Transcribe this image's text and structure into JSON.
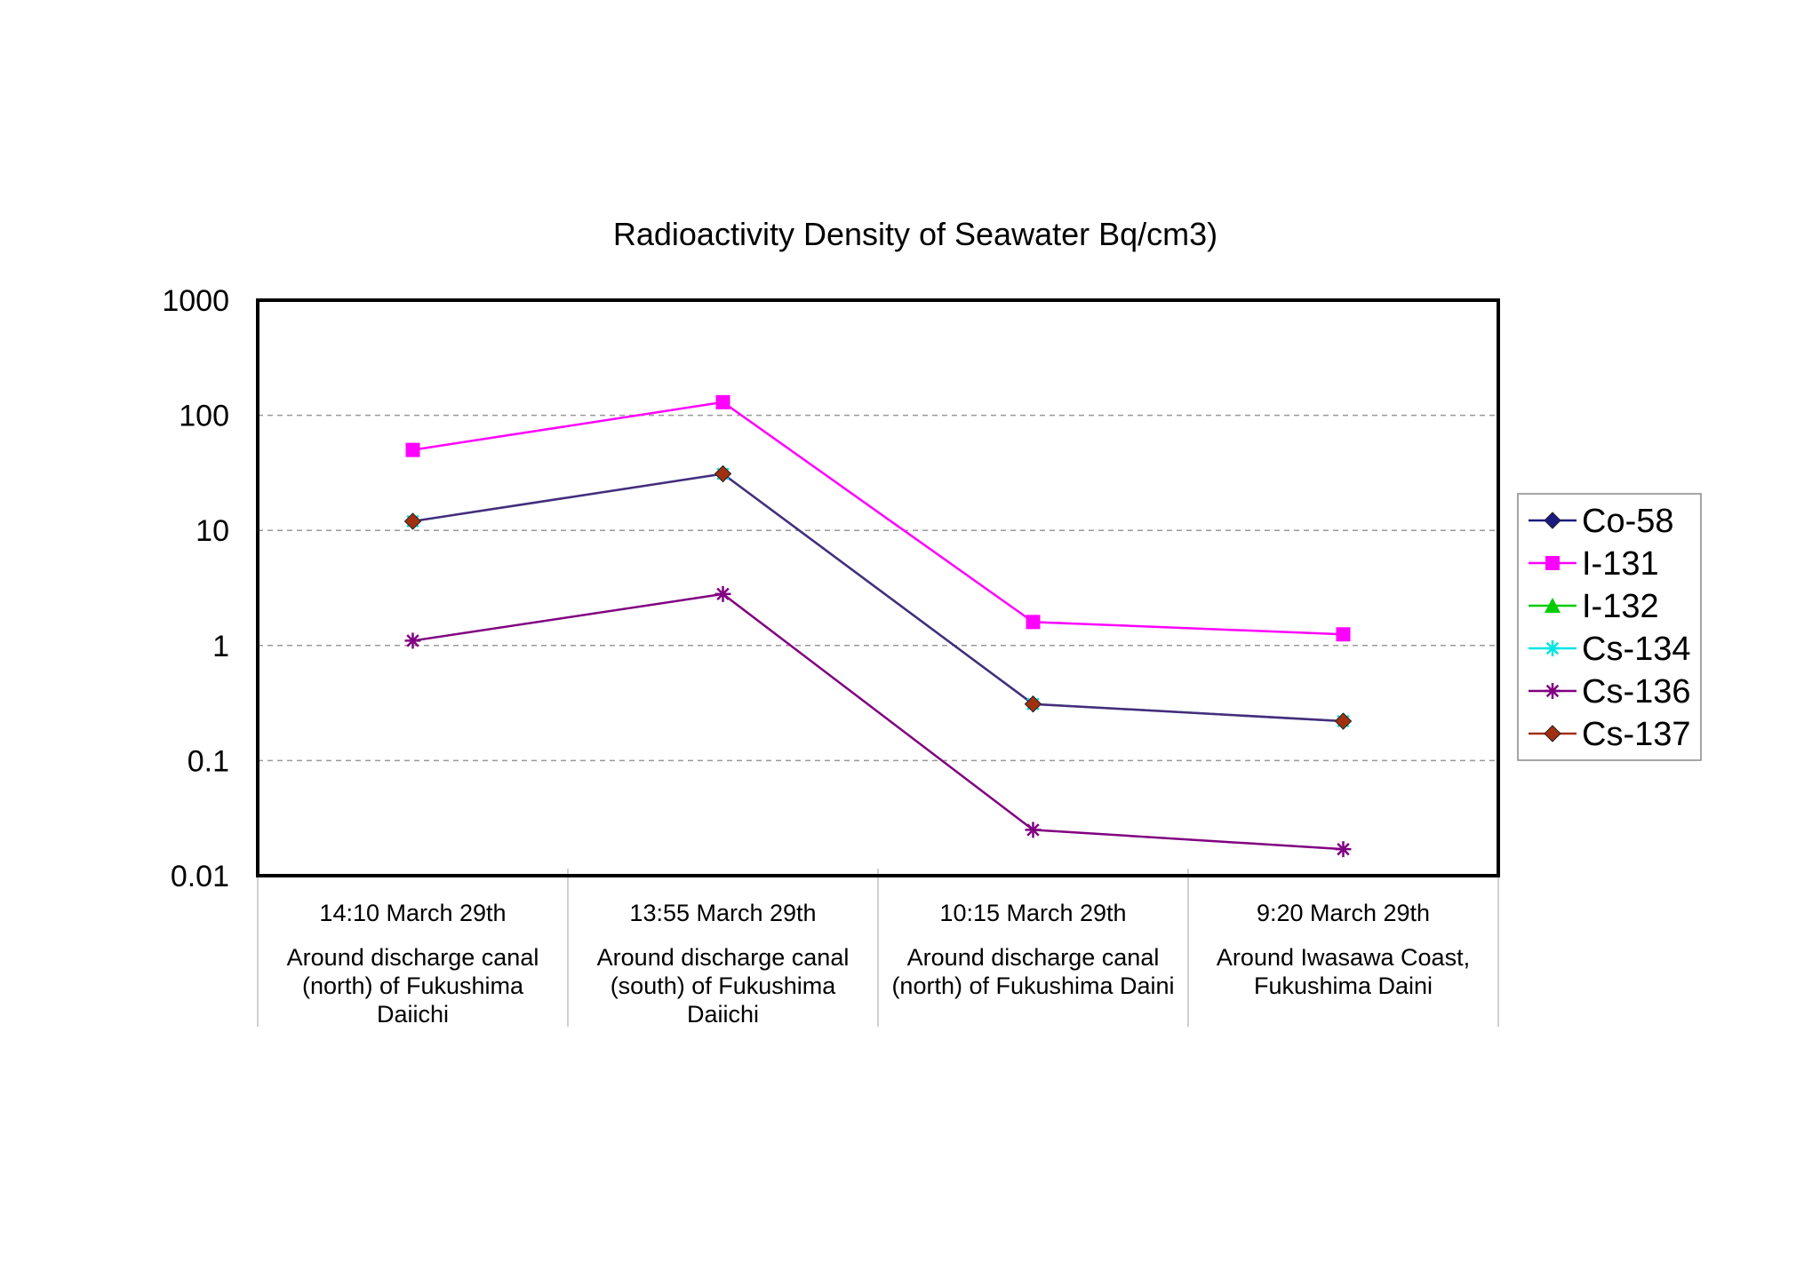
{
  "chart_data": {
    "type": "line",
    "title": "Radioactivity Density of Seawater   Bq/cm3)",
    "xlabel": "",
    "ylabel": "",
    "yscale": "log",
    "ylim": [
      0.01,
      1000
    ],
    "yticks": [
      1000,
      100,
      10,
      1,
      0.1,
      0.01
    ],
    "ytick_labels": [
      "1000",
      "100",
      "10",
      "1",
      "0.1",
      "0.01"
    ],
    "grid": true,
    "legend_position": "right",
    "categories": [
      {
        "time": "14:10 March 29th",
        "location": [
          "Around discharge canal",
          "(north) of Fukushima",
          "Daiichi"
        ]
      },
      {
        "time": "13:55 March 29th",
        "location": [
          "Around discharge canal",
          "(south) of Fukushima",
          "Daiichi"
        ]
      },
      {
        "time": "10:15 March 29th",
        "location": [
          "Around discharge canal",
          "(north) of Fukushima Daini"
        ]
      },
      {
        "time": "9:20  March 29th",
        "location": [
          "Around Iwasawa Coast,",
          "Fukushima Daini"
        ]
      }
    ],
    "series": [
      {
        "name": "Co-58",
        "color": "#1a1a80",
        "marker": "diamond",
        "values": [
          null,
          null,
          null,
          null
        ]
      },
      {
        "name": "I-131",
        "color": "#ff00ff",
        "marker": "square",
        "values": [
          50,
          130,
          1.6,
          1.25
        ]
      },
      {
        "name": "I-132",
        "color": "#00cc00",
        "marker": "triangle",
        "values": [
          null,
          null,
          null,
          null
        ]
      },
      {
        "name": "Cs-134",
        "color": "#00e5e5",
        "marker": "asterisk",
        "values": [
          12,
          31,
          0.31,
          0.22
        ]
      },
      {
        "name": "Cs-136",
        "color": "#800080",
        "marker": "asterisk",
        "values": [
          1.1,
          2.8,
          0.025,
          0.017
        ]
      },
      {
        "name": "Cs-137",
        "color": "#a03010",
        "marker": "diamond",
        "values": [
          12,
          31,
          0.31,
          0.22
        ]
      }
    ],
    "connector_color": "#4a2a7a"
  }
}
